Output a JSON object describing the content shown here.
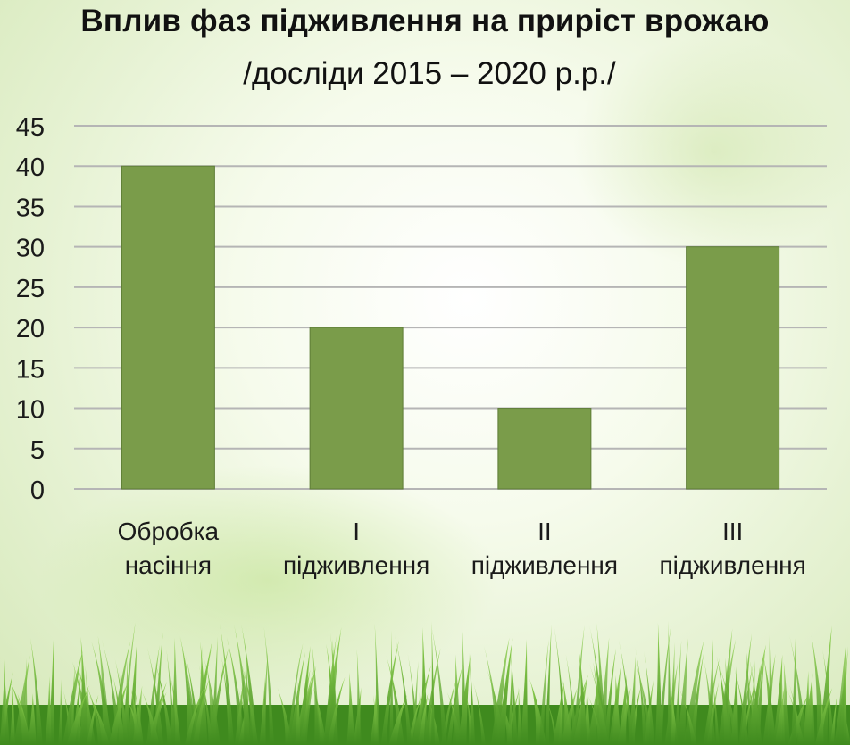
{
  "title": "Вплив фаз підживлення на приріст врожаю",
  "subtitle": "/досліди 2015 – 2020 р.р./",
  "colors": {
    "bar": "#7a9c4a",
    "bar_edge": "#5e7d36",
    "grid": "#b5b5b5",
    "text": "#1a1a1a",
    "grass_dark": "#3f8a1e",
    "grass_light": "#8fd14f"
  },
  "chart_data": {
    "type": "bar",
    "categories": [
      [
        "Обробка",
        "насіння"
      ],
      [
        "І",
        "підживлення"
      ],
      [
        "ІІ",
        "підживлення"
      ],
      [
        "ІІІ",
        "підживлення"
      ]
    ],
    "values": [
      40,
      20,
      10,
      30
    ],
    "ylim": [
      0,
      45
    ],
    "yticks": [
      "0",
      "5",
      "10",
      "15",
      "20",
      "25",
      "30",
      "35",
      "40",
      "45"
    ],
    "grid": true,
    "legend": "none"
  }
}
